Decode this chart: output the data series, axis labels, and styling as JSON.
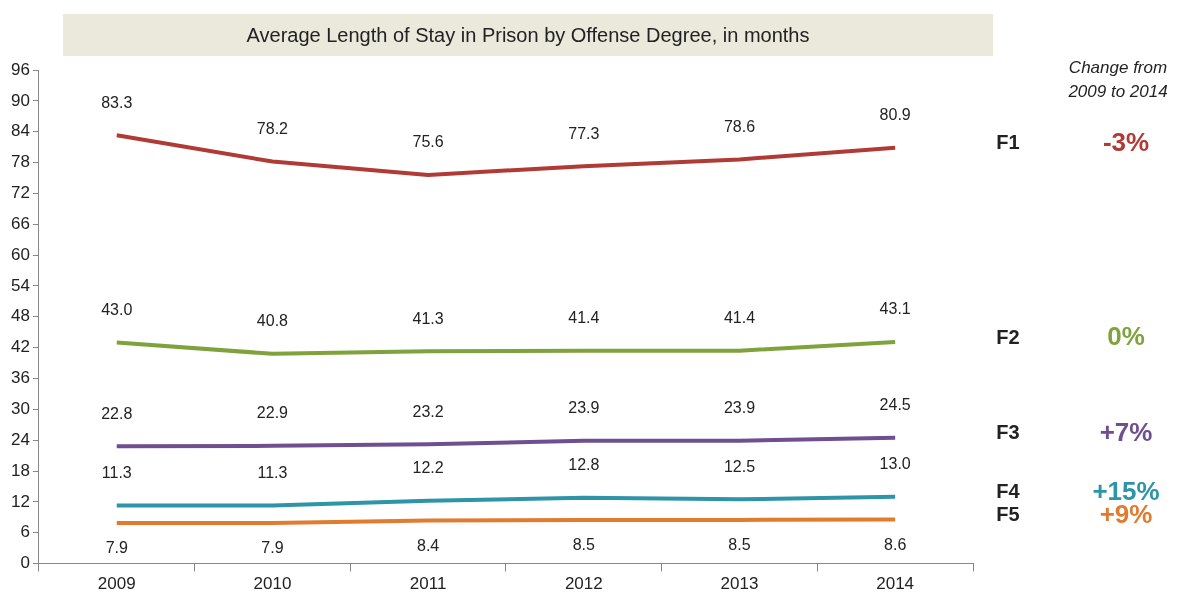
{
  "chart_data": {
    "type": "line",
    "title": "Average Length of Stay in Prison by Offense Degree, in months",
    "categories": [
      "2009",
      "2010",
      "2011",
      "2012",
      "2013",
      "2014"
    ],
    "series": [
      {
        "name": "F1",
        "color": "#b03a36",
        "values": [
          83.3,
          78.2,
          75.6,
          77.3,
          78.6,
          80.9
        ],
        "value_labels": [
          "83.3",
          "78.2",
          "75.6",
          "77.3",
          "78.6",
          "80.9"
        ]
      },
      {
        "name": "F2",
        "color": "#7fa23c",
        "values": [
          43.0,
          40.8,
          41.3,
          41.4,
          41.4,
          43.1
        ],
        "value_labels": [
          "43.0",
          "40.8",
          "41.3",
          "41.4",
          "41.4",
          "43.1"
        ]
      },
      {
        "name": "F3",
        "color": "#6f4f8f",
        "values": [
          22.8,
          22.9,
          23.2,
          23.9,
          23.9,
          24.5
        ],
        "value_labels": [
          "22.8",
          "22.9",
          "23.2",
          "23.9",
          "23.9",
          "24.5"
        ]
      },
      {
        "name": "F4",
        "color": "#2e94a8",
        "values": [
          11.3,
          11.3,
          12.2,
          12.8,
          12.5,
          13.0
        ],
        "value_labels": [
          "11.3",
          "11.3",
          "12.2",
          "12.8",
          "12.5",
          "13.0"
        ]
      },
      {
        "name": "F5",
        "color": "#e07b2f",
        "values": [
          7.9,
          7.9,
          8.4,
          8.5,
          8.5,
          8.6
        ],
        "value_labels": [
          "7.9",
          "7.9",
          "8.4",
          "8.5",
          "8.5",
          "8.6"
        ]
      }
    ],
    "ylim": [
      0,
      96
    ],
    "yticks": [
      0,
      6,
      12,
      18,
      24,
      30,
      36,
      42,
      48,
      54,
      60,
      66,
      72,
      78,
      84,
      90,
      96
    ],
    "grid": false,
    "legend": false,
    "marker": "none",
    "line_style": "solid",
    "annotations": [
      "Change from 2009 to 2014",
      "-3%",
      "0%",
      "+7%",
      "+15%",
      "+9%"
    ]
  }
}
